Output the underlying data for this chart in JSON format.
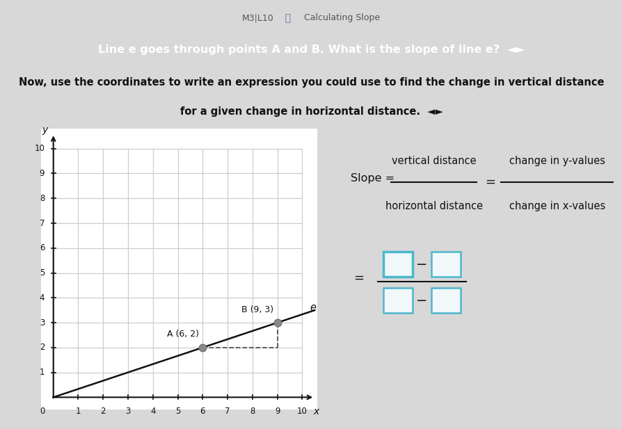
{
  "title_bar_text": "Line e goes through points A and B. What is the slope of line e?  ◄►",
  "title_bar_bg": "#7b5ea7",
  "title_bar_text_color": "#ffffff",
  "header_text": "M3|L10",
  "header_info": "ⓘ",
  "header_subtext": "Calculating Slope",
  "instruction_line1": "Now, use the coordinates to write an expression you could use to find the change in vertical distance",
  "instruction_line2": "for a given change in horizontal distance.  ◄►",
  "bg_color": "#d8d8d8",
  "graph_bg": "#ffffff",
  "point_A": [
    6,
    2
  ],
  "point_B": [
    9,
    3
  ],
  "line_color": "#111111",
  "point_color": "#888888",
  "dashed_color": "#555555",
  "grid_color": "#cccccc",
  "axis_color": "#111111",
  "label_A": "A (6, 2)",
  "label_B": "B (9, 3)",
  "line_label": "e",
  "slope_frac_top": "vertical distance",
  "slope_frac_bottom": "horizontal distance",
  "slope_frac2_top": "change in y-values",
  "slope_frac2_bottom": "change in x-values",
  "box_color": "#4ab8cc",
  "box_fill": "#f0f8fa",
  "xmin": 0,
  "xmax": 10,
  "ymin": 0,
  "ymax": 10
}
